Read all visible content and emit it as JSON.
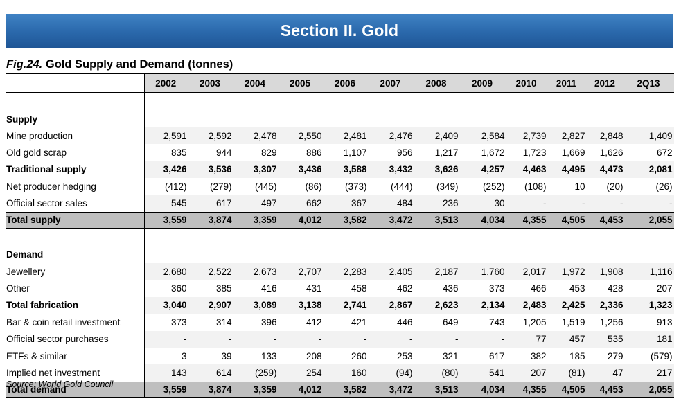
{
  "banner": {
    "title": "Section II. Gold"
  },
  "figure": {
    "number": "Fig.24.",
    "title": "Gold Supply and Demand (tonnes)"
  },
  "table": {
    "columns": [
      "2002",
      "2003",
      "2004",
      "2005",
      "2006",
      "2007",
      "2008",
      "2009",
      "2010",
      "2011",
      "2012",
      "2Q13"
    ],
    "supply_section": "Supply",
    "supply_rows": [
      {
        "label": "Mine production",
        "values": [
          "2,591",
          "2,592",
          "2,478",
          "2,550",
          "2,481",
          "2,476",
          "2,409",
          "2,584",
          "2,739",
          "2,827",
          "2,848",
          "1,409"
        ]
      },
      {
        "label": "Old gold scrap",
        "values": [
          "835",
          "944",
          "829",
          "886",
          "1,107",
          "956",
          "1,217",
          "1,672",
          "1,723",
          "1,669",
          "1,626",
          "672"
        ]
      },
      {
        "label": "Traditional supply",
        "values": [
          "3,426",
          "3,536",
          "3,307",
          "3,436",
          "3,588",
          "3,432",
          "3,626",
          "4,257",
          "4,463",
          "4,495",
          "4,473",
          "2,081"
        ]
      },
      {
        "label": "Net producer hedging",
        "values": [
          "(412)",
          "(279)",
          "(445)",
          "(86)",
          "(373)",
          "(444)",
          "(349)",
          "(252)",
          "(108)",
          "10",
          "(20)",
          "(26)"
        ]
      },
      {
        "label": "Official sector sales",
        "values": [
          "545",
          "617",
          "497",
          "662",
          "367",
          "484",
          "236",
          "30",
          "-",
          "-",
          "-",
          "-"
        ]
      }
    ],
    "supply_total": {
      "label": "Total supply",
      "values": [
        "3,559",
        "3,874",
        "3,359",
        "4,012",
        "3,582",
        "3,472",
        "3,513",
        "4,034",
        "4,355",
        "4,505",
        "4,453",
        "2,055"
      ]
    },
    "demand_section": "Demand",
    "demand_rows": [
      {
        "label": "Jewellery",
        "values": [
          "2,680",
          "2,522",
          "2,673",
          "2,707",
          "2,283",
          "2,405",
          "2,187",
          "1,760",
          "2,017",
          "1,972",
          "1,908",
          "1,116"
        ]
      },
      {
        "label": "Other",
        "values": [
          "360",
          "385",
          "416",
          "431",
          "458",
          "462",
          "436",
          "373",
          "466",
          "453",
          "428",
          "207"
        ]
      },
      {
        "label": "Total fabrication",
        "values": [
          "3,040",
          "2,907",
          "3,089",
          "3,138",
          "2,741",
          "2,867",
          "2,623",
          "2,134",
          "2,483",
          "2,425",
          "2,336",
          "1,323"
        ]
      },
      {
        "label": "Bar & coin retail investment",
        "values": [
          "373",
          "314",
          "396",
          "412",
          "421",
          "446",
          "649",
          "743",
          "1,205",
          "1,519",
          "1,256",
          "913"
        ]
      },
      {
        "label": "Official sector purchases",
        "values": [
          "-",
          "-",
          "-",
          "-",
          "-",
          "-",
          "-",
          "-",
          "77",
          "457",
          "535",
          "181"
        ]
      },
      {
        "label": "ETFs & similar",
        "values": [
          "3",
          "39",
          "133",
          "208",
          "260",
          "253",
          "321",
          "617",
          "382",
          "185",
          "279",
          "(579)"
        ]
      },
      {
        "label": "Implied net investment",
        "values": [
          "143",
          "614",
          "(259)",
          "254",
          "160",
          "(94)",
          "(80)",
          "541",
          "207",
          "(81)",
          "47",
          "217"
        ]
      }
    ],
    "demand_total": {
      "label": "Total demand",
      "values": [
        "3,559",
        "3,874",
        "3,359",
        "4,012",
        "3,582",
        "3,472",
        "3,513",
        "4,034",
        "4,355",
        "4,505",
        "4,453",
        "2,055"
      ]
    }
  },
  "source": "Source: World Gold Council"
}
